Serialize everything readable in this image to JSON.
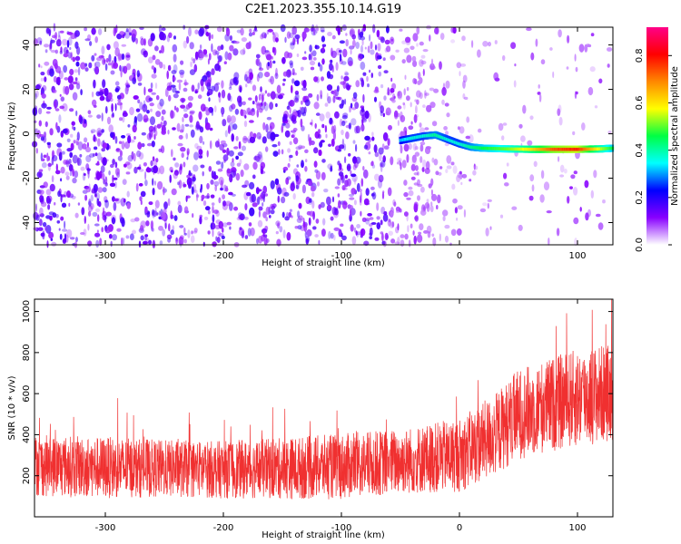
{
  "title": "C2E1.2023.355.10.14.G19",
  "chart_data": [
    {
      "type": "heatmap",
      "xlabel": "Height of straight line (km)",
      "ylabel": "Frequency (Hz)",
      "xlim": [
        -360,
        130
      ],
      "ylim": [
        -50,
        48
      ],
      "xticks": [
        -300,
        -200,
        -100,
        0,
        100
      ],
      "yticks": [
        -40,
        -20,
        0,
        20,
        40
      ],
      "colorbar": {
        "label": "Normalized spectral amplitude",
        "range": [
          0,
          0.92
        ],
        "ticks": [
          "0.0",
          "0.2",
          "0.4",
          "0.6",
          "0.8"
        ],
        "colors": [
          "#ffffff",
          "#8800ff",
          "#0000ff",
          "#00ffff",
          "#00ff44",
          "#ffff00",
          "#ff8800",
          "#ff0000",
          "#ff0088"
        ]
      },
      "signal_trace": {
        "x": [
          -50,
          -40,
          -30,
          -20,
          -10,
          0,
          10,
          20,
          40,
          60,
          80,
          100,
          120,
          130
        ],
        "y": [
          -3,
          -2,
          -1,
          -0.5,
          -2.5,
          -4.5,
          -6,
          -6.5,
          -6.8,
          -7,
          -7,
          -7,
          -6.8,
          -6.5
        ],
        "amplitude": [
          0.35,
          0.4,
          0.4,
          0.45,
          0.4,
          0.4,
          0.45,
          0.5,
          0.55,
          0.65,
          0.8,
          0.85,
          0.6,
          0.5
        ]
      }
    },
    {
      "type": "line",
      "xlabel": "Height of straight line (km)",
      "ylabel": "SNR (10 * v/v)",
      "xlim": [
        -360,
        130
      ],
      "ylim": [
        0,
        1060
      ],
      "xticks": [
        -300,
        -200,
        -100,
        0,
        100
      ],
      "yticks": [
        200,
        400,
        600,
        800,
        1000
      ],
      "color": "#f03030",
      "series": [
        {
          "x": [
            -360,
            -300,
            -250,
            -200,
            -150,
            -100,
            -50,
            0,
            30,
            50,
            80,
            100,
            130
          ],
          "y_center": [
            250,
            240,
            235,
            230,
            235,
            245,
            270,
            300,
            400,
            500,
            550,
            580,
            610
          ],
          "y_spread": [
            150,
            150,
            140,
            140,
            150,
            160,
            160,
            180,
            200,
            220,
            230,
            240,
            240
          ]
        }
      ]
    }
  ]
}
